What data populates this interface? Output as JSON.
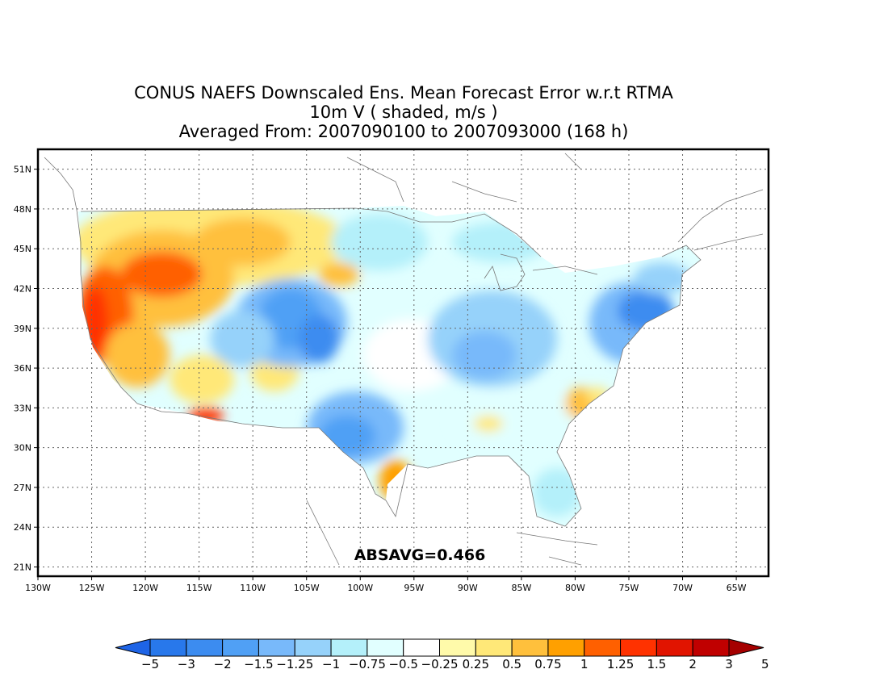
{
  "title": {
    "line1": "CONUS NAEFS Downscaled Ens. Mean Forecast Error w.r.t RTMA",
    "line2": "10m V ( shaded, m/s )",
    "line3": "Averaged From: 2007090100 to 2007093000 (168 h)"
  },
  "annotation": "ABSAVG=0.466",
  "map": {
    "projection": "lat-lon",
    "lon_range": [
      -130,
      -62
    ],
    "lat_range": [
      20.3,
      52.5
    ],
    "lat_ticks": [
      "51N",
      "48N",
      "45N",
      "42N",
      "39N",
      "36N",
      "33N",
      "30N",
      "27N",
      "24N",
      "21N"
    ],
    "lon_ticks": [
      "130W",
      "125W",
      "120W",
      "115W",
      "110W",
      "105W",
      "100W",
      "95W",
      "90W",
      "85W",
      "80W",
      "75W",
      "70W",
      "65W"
    ],
    "grid": "dotted"
  },
  "colorbar": {
    "labels": [
      "-5",
      "-3",
      "-2",
      "-1.5",
      "-1.25",
      "-1",
      "-0.75",
      "-0.5",
      "-0.25",
      "0.25",
      "0.5",
      "0.75",
      "1",
      "1.25",
      "1.5",
      "2",
      "3",
      "5"
    ],
    "colors": [
      "#1e64e6",
      "#2878eb",
      "#3c8cf0",
      "#50a0f5",
      "#78b9fa",
      "#96d2fa",
      "#b4f0fa",
      "#e1ffff",
      "#ffffff",
      "#fffaaa",
      "#ffe878",
      "#ffc03c",
      "#ffa000",
      "#ff6000",
      "#ff3200",
      "#e11400",
      "#c00000",
      "#a50000"
    ]
  },
  "field_regions": [
    {
      "name": "pacific-nw-coast",
      "value": 1.25,
      "color": "#ff6000"
    },
    {
      "name": "northern-rockies",
      "value": 0.75,
      "color": "#ffc03c"
    },
    {
      "name": "central-rockies",
      "value": -1.25,
      "color": "#50a0f5"
    },
    {
      "name": "south-plains-texas",
      "value": -1.25,
      "color": "#50a0f5"
    },
    {
      "name": "midwest-ohio-valley",
      "value": -0.75,
      "color": "#96d2fa"
    },
    {
      "name": "mid-atlantic-northeast",
      "value": -1.5,
      "color": "#3c8cf0"
    },
    {
      "name": "california-coast",
      "value": 1.5,
      "color": "#ff3200"
    },
    {
      "name": "texas-gulf-coast",
      "value": 1,
      "color": "#ffa000"
    },
    {
      "name": "arizona-south",
      "value": 1.5,
      "color": "#ff3200"
    }
  ]
}
